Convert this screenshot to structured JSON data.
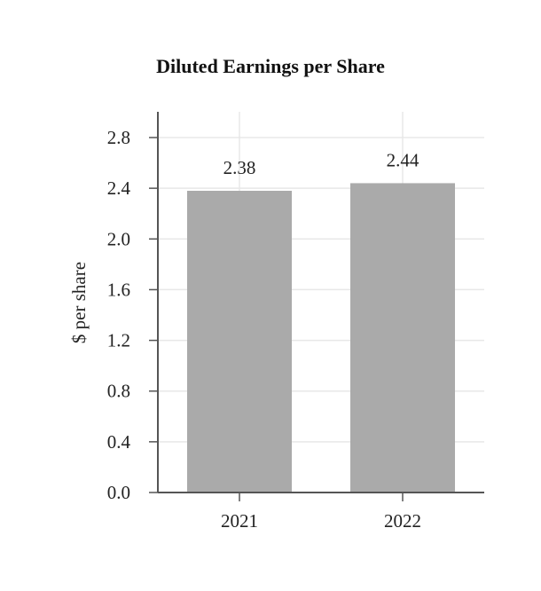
{
  "chart_data": {
    "type": "bar",
    "title": "Diluted Earnings per Share",
    "xlabel": "",
    "ylabel": "$ per share",
    "categories": [
      "2021",
      "2022"
    ],
    "values": [
      2.38,
      2.44
    ],
    "data_labels": [
      "2.38",
      "2.44"
    ],
    "ylim": [
      0,
      2.8
    ],
    "yticks": [
      0.0,
      0.4,
      0.8,
      1.2,
      1.6,
      2.0,
      2.4,
      2.8
    ],
    "ytick_labels": [
      "0.0",
      "0.4",
      "0.8",
      "1.2",
      "1.6",
      "2.0",
      "2.4",
      "2.8"
    ],
    "grid": true,
    "colors": {
      "bar": "#aaaaaa",
      "grid": "#e8e8e8",
      "axis": "#555555"
    }
  }
}
